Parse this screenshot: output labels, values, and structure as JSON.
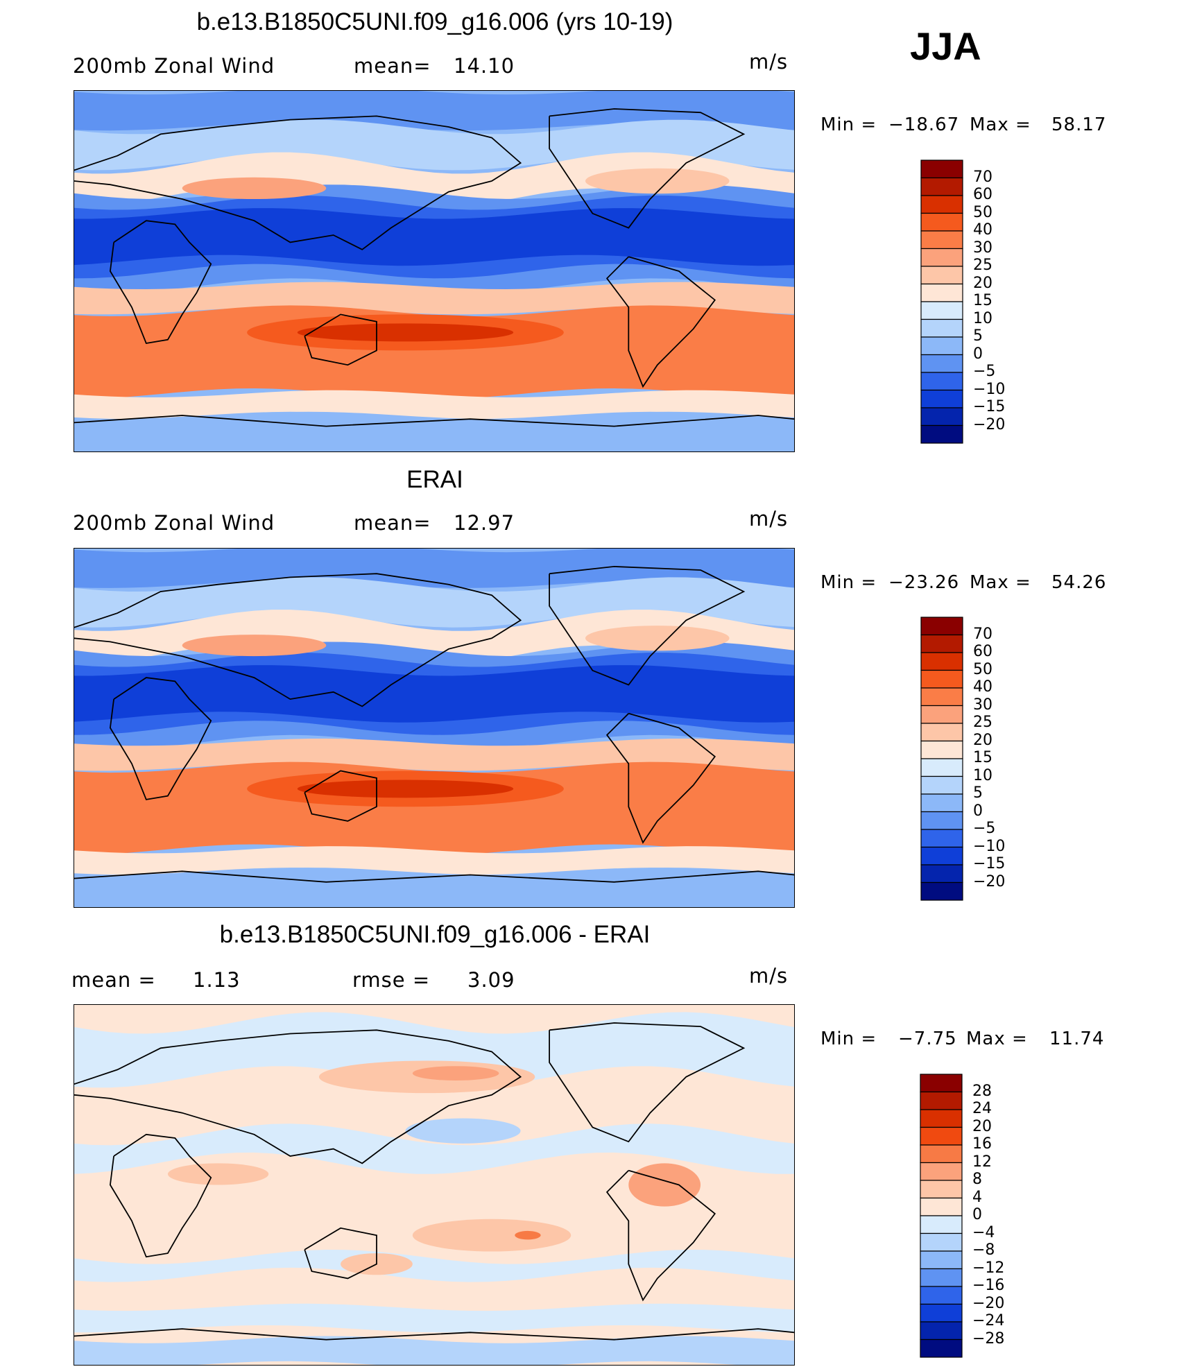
{
  "season": "JJA",
  "chart_data": [
    {
      "type": "heatmap",
      "title": "b.e13.B1850C5UNI.f09_g16.006 (yrs 10-19)",
      "left_label": "200mb Zonal Wind",
      "mean_label": "mean=",
      "mean_value": "14.10",
      "units": "m/s",
      "min_label": "Min  =",
      "min_value": "−18.67",
      "max_label": "Max  =",
      "max_value": "58.17",
      "levels": [
        "70",
        "60",
        "50",
        "40",
        "30",
        "25",
        "20",
        "15",
        "10",
        "5",
        "0",
        "−5",
        "−10",
        "−15",
        "−20"
      ],
      "colors": [
        "#8a0000",
        "#b31a00",
        "#d93000",
        "#f55a1e",
        "#fa7d47",
        "#fba27c",
        "#fdc6a8",
        "#fee6d6",
        "#d8ebfc",
        "#b4d4fb",
        "#8cb8f8",
        "#5f93f2",
        "#2f64ea",
        "#0f3fd8",
        "#0424ad",
        "#000c80"
      ]
    },
    {
      "type": "heatmap",
      "title": "ERAI",
      "left_label": "200mb Zonal Wind",
      "mean_label": "mean=",
      "mean_value": "12.97",
      "units": "m/s",
      "min_label": "Min  =",
      "min_value": "−23.26",
      "max_label": "Max  =",
      "max_value": "54.26",
      "levels": [
        "70",
        "60",
        "50",
        "40",
        "30",
        "25",
        "20",
        "15",
        "10",
        "5",
        "0",
        "−5",
        "−10",
        "−15",
        "−20"
      ],
      "colors": [
        "#8a0000",
        "#b31a00",
        "#d93000",
        "#f55a1e",
        "#fa7d47",
        "#fba27c",
        "#fdc6a8",
        "#fee6d6",
        "#d8ebfc",
        "#b4d4fb",
        "#8cb8f8",
        "#5f93f2",
        "#2f64ea",
        "#0f3fd8",
        "#0424ad",
        "#000c80"
      ]
    },
    {
      "type": "heatmap",
      "title": "b.e13.B1850C5UNI.f09_g16.006 - ERAI",
      "left_label": "mean  =",
      "left_value": "1.13",
      "rmse_label": "rmse  =",
      "rmse_value": "3.09",
      "units": "m/s",
      "min_label": "Min  =",
      "min_value": "−7.75",
      "max_label": "Max  =",
      "max_value": "11.74",
      "levels": [
        "28",
        "24",
        "20",
        "16",
        "12",
        "8",
        "4",
        "0",
        "−4",
        "−8",
        "−12",
        "−16",
        "−20",
        "−24",
        "−28"
      ],
      "colors": [
        "#8a0000",
        "#b31a00",
        "#d93000",
        "#f04a10",
        "#f77a45",
        "#fba27c",
        "#fdc6a8",
        "#fee6d6",
        "#d8ebfc",
        "#b4d4fb",
        "#8cb8f8",
        "#5f93f2",
        "#2f64ea",
        "#0f3fd8",
        "#0424ad",
        "#000c80"
      ]
    }
  ]
}
